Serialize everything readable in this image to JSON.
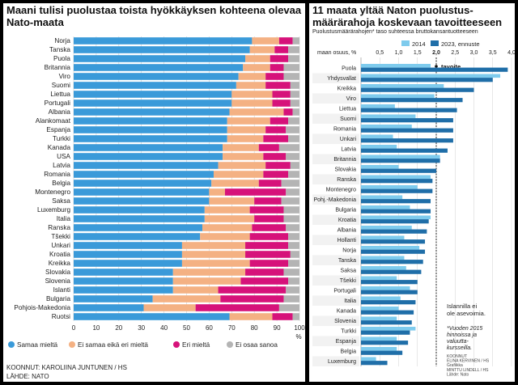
{
  "chart_data": [
    {
      "type": "bar",
      "orientation": "horizontal-stacked-100",
      "title": "Maani tulisi puolustaa toista hyökkäyksen kohteena olevaa Nato-maata",
      "xlabel": "%",
      "xlim": [
        0,
        100
      ],
      "xticks": [
        "0",
        "10",
        "20",
        "30",
        "40",
        "50",
        "60",
        "70",
        "80",
        "90",
        "100"
      ],
      "grid": true,
      "legend_position": "bottom",
      "categories": [
        "Norja",
        "Tanska",
        "Puola",
        "Britannia",
        "Viro",
        "Suomi",
        "Liettua",
        "Portugali",
        "Albania",
        "Alankomaat",
        "Espanja",
        "Turkki",
        "Kanada",
        "USA",
        "Latvia",
        "Romania",
        "Belgia",
        "Montenegro",
        "Saksa",
        "Luxemburg",
        "Italia",
        "Ranska",
        "Tšekki",
        "Unkari",
        "Kroatia",
        "Kreikka",
        "Slovakia",
        "Slovenia",
        "Islanti",
        "Bulgaria",
        "Pohjois-Makedonia",
        "Ruotsi"
      ],
      "series": [
        {
          "name": "Samaa mieltä",
          "color": "#3a9ad9",
          "values": [
            79,
            78,
            76,
            75,
            73,
            72,
            70,
            70,
            69,
            68,
            68,
            68,
            66,
            66,
            64,
            62,
            61,
            60,
            60,
            58,
            58,
            57,
            56,
            48,
            48,
            48,
            44,
            44,
            44,
            35,
            31,
            69
          ]
        },
        {
          "name": "Ei samaa eikä eri mieltä",
          "color": "#f4b183",
          "values": [
            12,
            11,
            11,
            12,
            12,
            13,
            18,
            18,
            24,
            19,
            17,
            16,
            16,
            18,
            21,
            22,
            21,
            7,
            20,
            20,
            22,
            22,
            22,
            28,
            28,
            30,
            32,
            30,
            20,
            30,
            23,
            19
          ]
        },
        {
          "name": "Eri mieltä",
          "color": "#d6127a",
          "values": [
            6,
            6,
            8,
            6,
            8,
            11,
            8,
            8,
            4,
            8,
            9,
            11,
            9,
            10,
            11,
            11,
            10,
            27,
            12,
            15,
            13,
            15,
            17,
            19,
            20,
            17,
            17,
            21,
            30,
            28,
            37,
            9
          ]
        },
        {
          "name": "Ei osaa sanoa",
          "color": "#b4b4b4",
          "values": [
            3,
            5,
            5,
            7,
            7,
            4,
            4,
            4,
            3,
            5,
            6,
            5,
            9,
            6,
            4,
            5,
            8,
            6,
            8,
            7,
            7,
            6,
            5,
            5,
            4,
            5,
            7,
            5,
            6,
            7,
            9,
            3
          ]
        }
      ]
    },
    {
      "type": "bar",
      "orientation": "horizontal-grouped",
      "title": "11 maata yltää Naton puolustusmäärärahoja koskevaan tavoitteeseen",
      "subtitle": "Puolustusmäärärahojen* taso suhteessa bruttokansantuotteeseen",
      "xlabel": "maan osuus, %",
      "xlim": [
        0,
        4
      ],
      "xticks": [
        "0,5",
        "1,0",
        "1,5",
        "2,0",
        "2,5",
        "3,0",
        "3,5",
        "4,0"
      ],
      "reference_line": {
        "value": 2.0,
        "label": "tavoite"
      },
      "legend_position": "top",
      "categories": [
        "Puola",
        "Yhdysvallat",
        "Kreikka",
        "Viro",
        "Liettua",
        "Suomi",
        "Romania",
        "Unkari",
        "Latvia",
        "Britannia",
        "Slovakia",
        "Ranska",
        "Montenegro",
        "Pohj.-Makedonia",
        "Bulgaria",
        "Kroatia",
        "Albania",
        "Hollanti",
        "Norja",
        "Tanska",
        "Saksa",
        "Tšekki",
        "Portugali",
        "Italia",
        "Kanada",
        "Slovenia",
        "Turkki",
        "Espanja",
        "Belgia",
        "Luxemburg"
      ],
      "series": [
        {
          "name": "2014",
          "color": "#7ecbed",
          "values": [
            1.85,
            3.7,
            2.2,
            1.95,
            0.9,
            1.45,
            1.35,
            0.85,
            0.95,
            2.1,
            1.0,
            1.85,
            1.5,
            1.1,
            1.3,
            1.85,
            1.35,
            1.15,
            1.55,
            1.15,
            1.2,
            0.95,
            1.3,
            1.05,
            1.0,
            0.95,
            1.45,
            0.95,
            0.95,
            0.4
          ]
        },
        {
          "name": "2023, ennuste",
          "color": "#1f6ea8",
          "values": [
            3.9,
            3.5,
            3.0,
            2.7,
            2.55,
            2.45,
            2.45,
            2.45,
            2.3,
            2.1,
            2.0,
            1.9,
            1.9,
            1.85,
            1.85,
            1.8,
            1.75,
            1.7,
            1.7,
            1.65,
            1.6,
            1.5,
            1.5,
            1.45,
            1.4,
            1.35,
            1.3,
            1.25,
            1.1,
            0.7
          ]
        }
      ],
      "annotations": [
        "Islannilla ei ole asevoimia.",
        "*Vuoden 2015 hinnoissa ja valuuttakursseilla."
      ]
    }
  ],
  "left": {
    "title": "Maani tulisi puolustaa toista hyökkäyksen kohteena olevaa Nato-maata",
    "source_line1": "KOONNUT: KAROLIINA JUNTUNEN / HS",
    "source_line2": "LÄHDE: NATO",
    "percent_label": "%"
  },
  "right": {
    "title": "11 maata yltää Naton puolustus-määrärahoja koskevaan tavoitteeseen",
    "subtitle": "Puolustusmäärärahojen* taso suhteessa bruttokansantuotteeseen",
    "axis_label": "maan osuus, %",
    "target_label": "tavoite",
    "note_iceland": "Islannilla ei ole asevoimia.",
    "note_footnote": "*Vuoden 2015 hinnoissa ja valuutta-kursseilla.",
    "credits": [
      "KOONNUT",
      "ELINA KERVINEN / HS",
      "Grafiikka",
      "MINTTU LINDELL / HS",
      "Lähde: Nato"
    ]
  }
}
